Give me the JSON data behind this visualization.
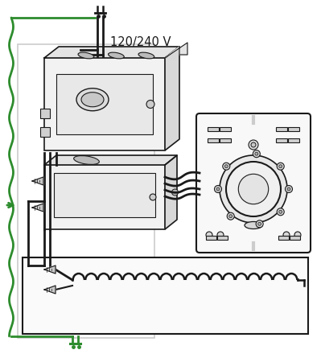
{
  "bg": "#ffffff",
  "lc": "#1a1a1a",
  "gc": "#2d8c2d",
  "gray_box": "#cccccc",
  "comp_face": "#f2f2f2",
  "comp_side": "#d8d8d8",
  "comp_top": "#e4e4e4",
  "nut_color": "#c8c8c8",
  "therm_bg": "#f8f8f8",
  "label": "120/240 V",
  "figsize": [
    3.99,
    4.4
  ],
  "dpi": 100
}
